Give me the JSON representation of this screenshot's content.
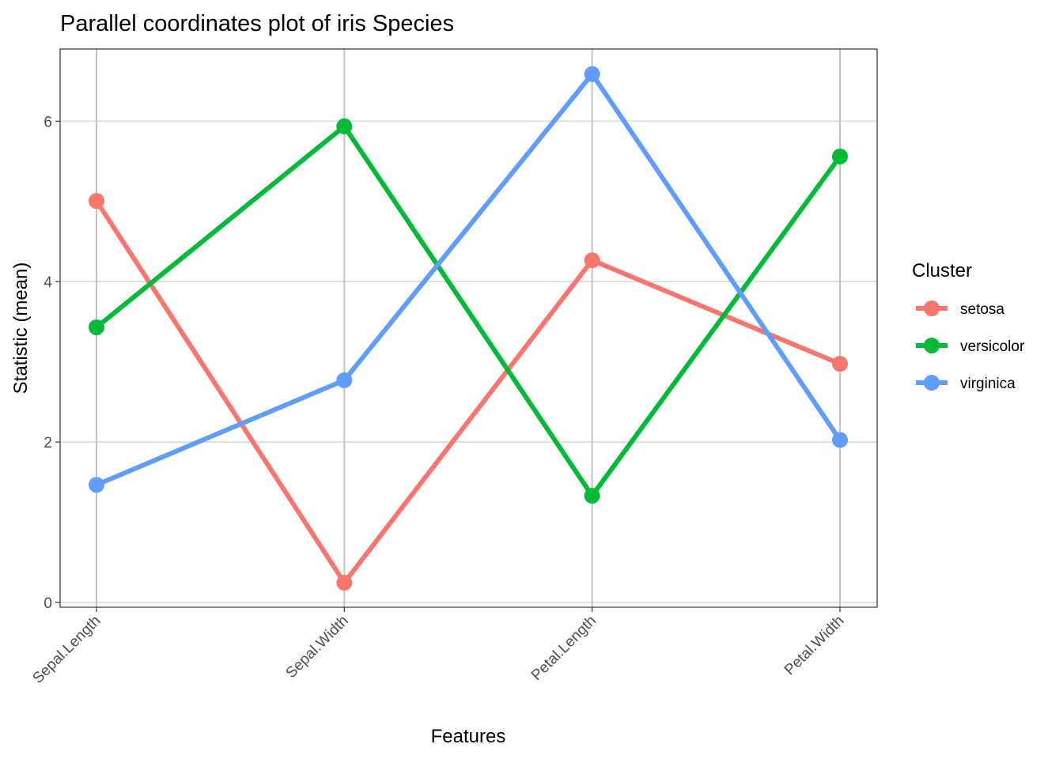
{
  "chart_data": {
    "type": "line",
    "title": "Parallel coordinates plot of iris Species",
    "xlabel": "Features",
    "ylabel": "Statistic (mean)",
    "categories": [
      "Sepal.Length",
      "Sepal.Width",
      "Petal.Length",
      "Petal.Width"
    ],
    "ylim": [
      -0.06,
      6.9
    ],
    "yticks": [
      0,
      2,
      4,
      6
    ],
    "grid": true,
    "legend": {
      "title": "Cluster",
      "position": "right"
    },
    "series": [
      {
        "name": "setosa",
        "color": "#F8766D",
        "values": [
          5.006,
          0.246,
          4.266,
          2.975
        ]
      },
      {
        "name": "versicolor",
        "color": "#00BA38",
        "values": [
          3.43,
          5.936,
          1.33,
          5.56
        ]
      },
      {
        "name": "virginica",
        "color": "#619CFF",
        "values": [
          1.466,
          2.77,
          6.588,
          2.026
        ]
      }
    ]
  }
}
